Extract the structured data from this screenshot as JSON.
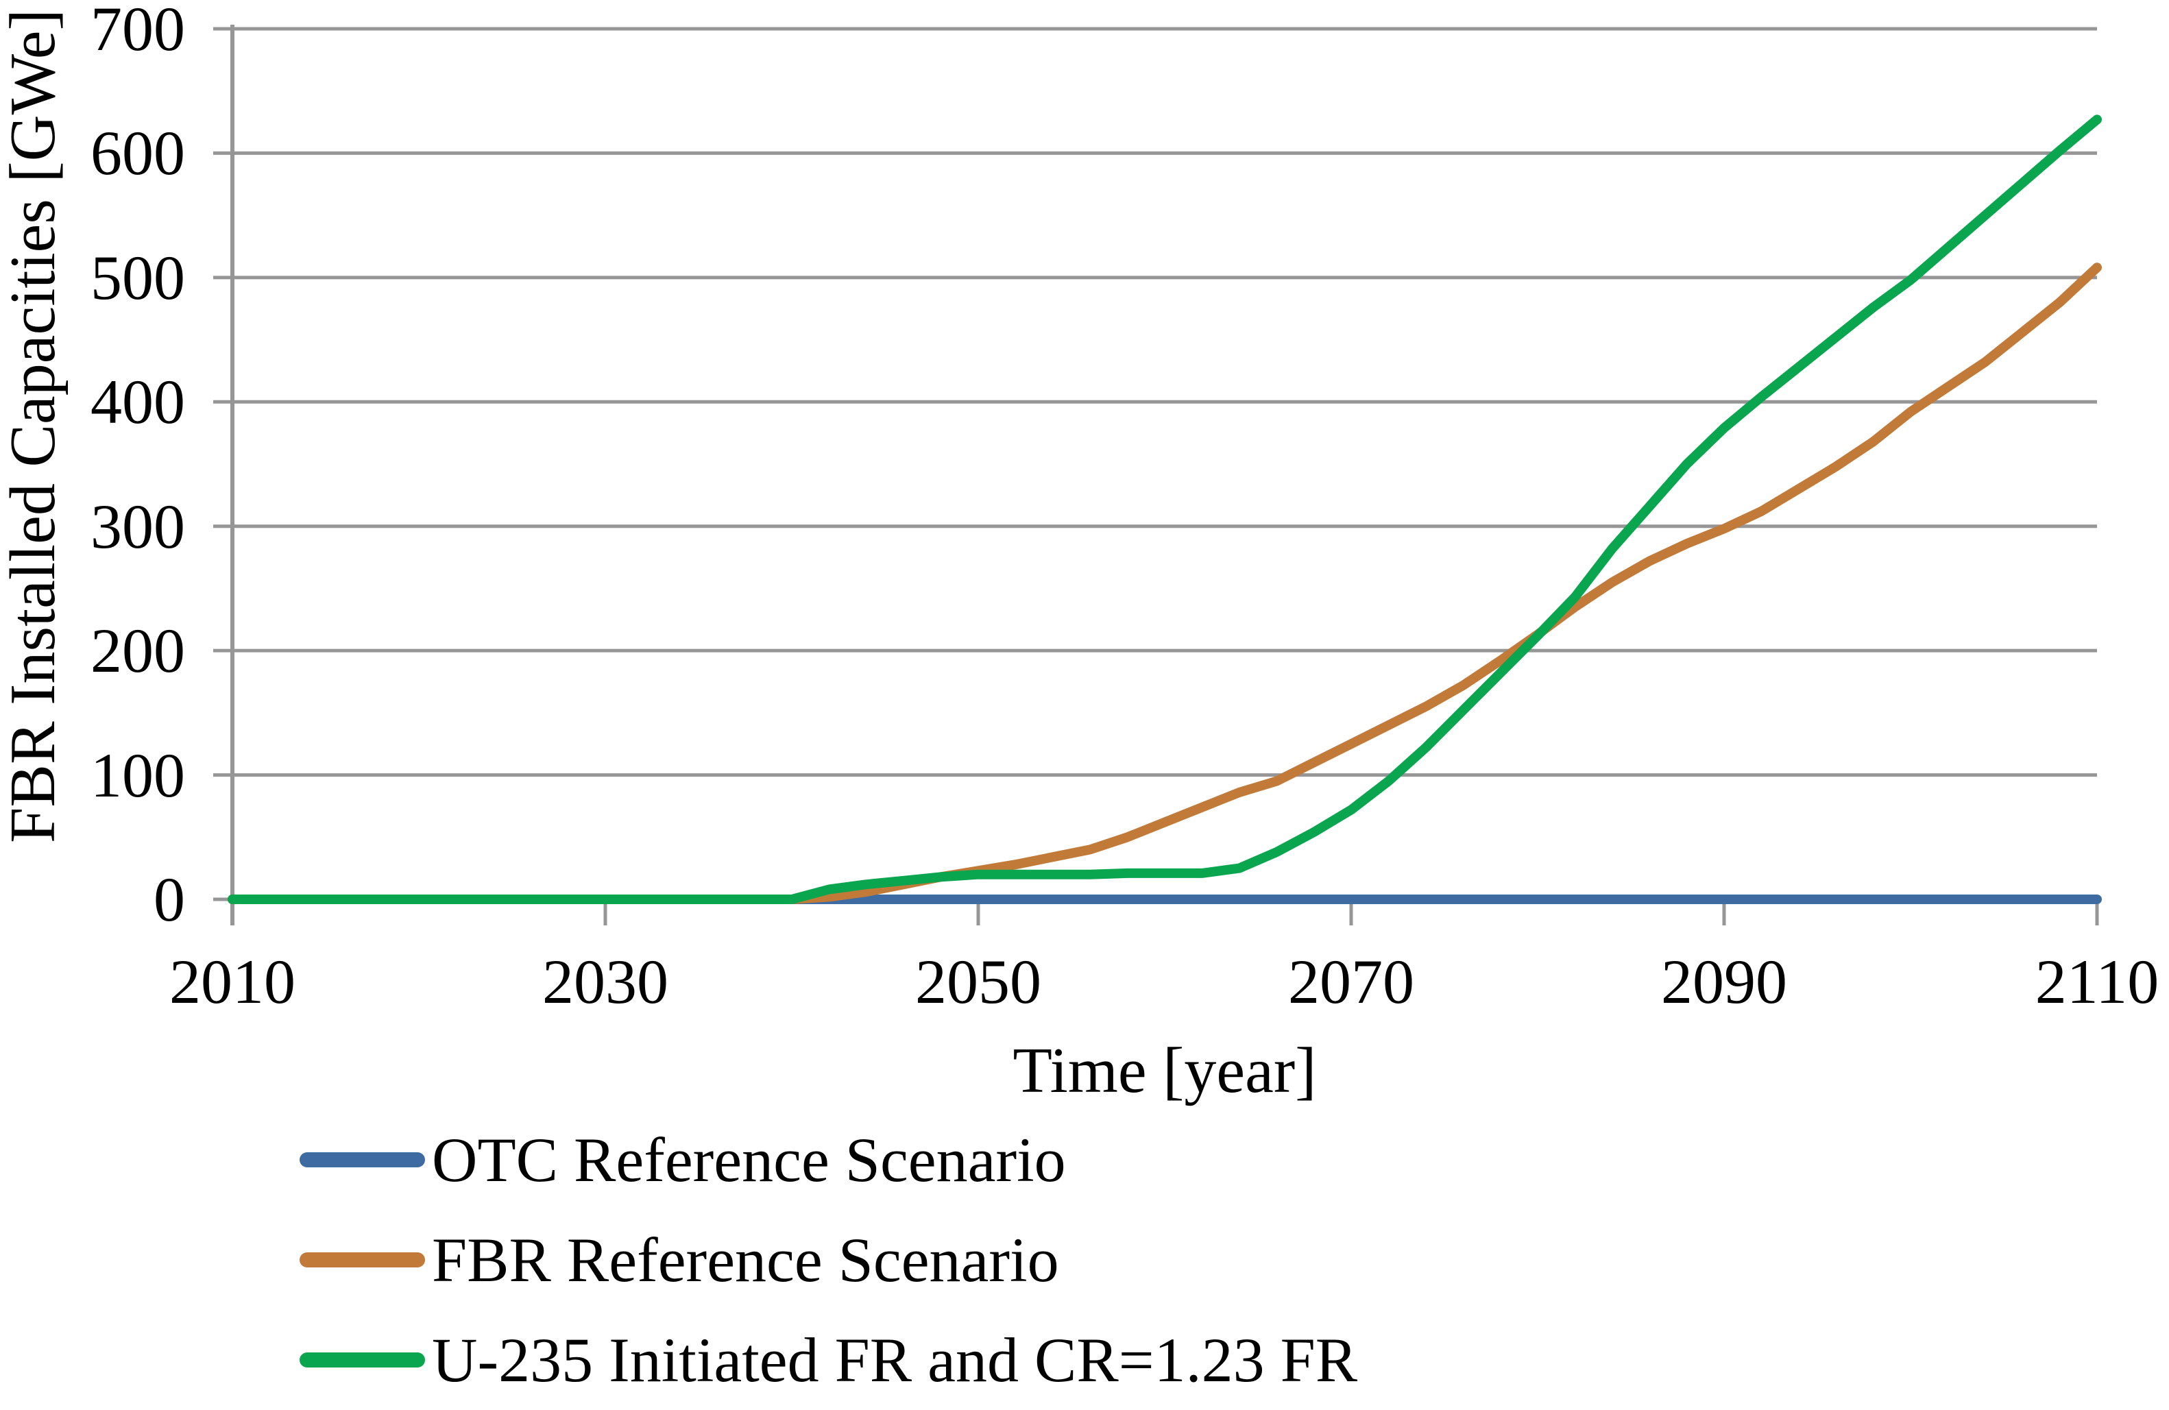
{
  "chart_data": {
    "type": "line",
    "title": "",
    "xlabel": "Time [year]",
    "ylabel": "FBR Installed Capacities [GWe]",
    "xlim": [
      2010,
      2110
    ],
    "ylim": [
      0,
      700
    ],
    "xticks": [
      2010,
      2030,
      2050,
      2070,
      2090,
      2110
    ],
    "yticks": [
      0,
      100,
      200,
      300,
      400,
      500,
      600,
      700
    ],
    "grid": "horizontal-only",
    "legend_position": "below-left",
    "colors": {
      "gridline": "#969696",
      "axis": "#969696",
      "text": "#000000",
      "background": "#ffffff"
    },
    "years": [
      2010,
      2015,
      2020,
      2025,
      2030,
      2035,
      2040,
      2042,
      2044,
      2046,
      2048,
      2050,
      2052,
      2054,
      2056,
      2058,
      2060,
      2062,
      2064,
      2066,
      2068,
      2070,
      2072,
      2074,
      2076,
      2078,
      2080,
      2082,
      2084,
      2086,
      2088,
      2090,
      2092,
      2094,
      2096,
      2098,
      2100,
      2102,
      2104,
      2106,
      2108,
      2110
    ],
    "series": [
      {
        "name": "OTC Reference Scenario",
        "color": "#3F6BA3",
        "values": [
          0,
          0,
          0,
          0,
          0,
          0,
          0,
          0,
          0,
          0,
          0,
          0,
          0,
          0,
          0,
          0,
          0,
          0,
          0,
          0,
          0,
          0,
          0,
          0,
          0,
          0,
          0,
          0,
          0,
          0,
          0,
          0,
          0,
          0,
          0,
          0,
          0,
          0,
          0,
          0,
          0,
          0
        ]
      },
      {
        "name": "FBR Reference Scenario",
        "color": "#C17A38",
        "values": [
          0,
          0,
          0,
          0,
          0,
          0,
          0,
          2,
          6,
          12,
          18,
          23,
          28,
          34,
          40,
          50,
          62,
          74,
          86,
          95,
          110,
          125,
          140,
          155,
          172,
          192,
          213,
          235,
          255,
          272,
          286,
          298,
          312,
          330,
          348,
          368,
          392,
          412,
          432,
          456,
          480,
          508
        ]
      },
      {
        "name": "U-235 Initiated FR and CR=1.23 FR",
        "color": "#0AA64F",
        "values": [
          0,
          0,
          0,
          0,
          0,
          0,
          0,
          8,
          12,
          15,
          18,
          20,
          20,
          20,
          20,
          21,
          21,
          21,
          25,
          38,
          54,
          72,
          95,
          122,
          152,
          182,
          212,
          243,
          282,
          316,
          350,
          379,
          404,
          428,
          452,
          476,
          498,
          524,
          550,
          576,
          602,
          627
        ]
      }
    ]
  }
}
